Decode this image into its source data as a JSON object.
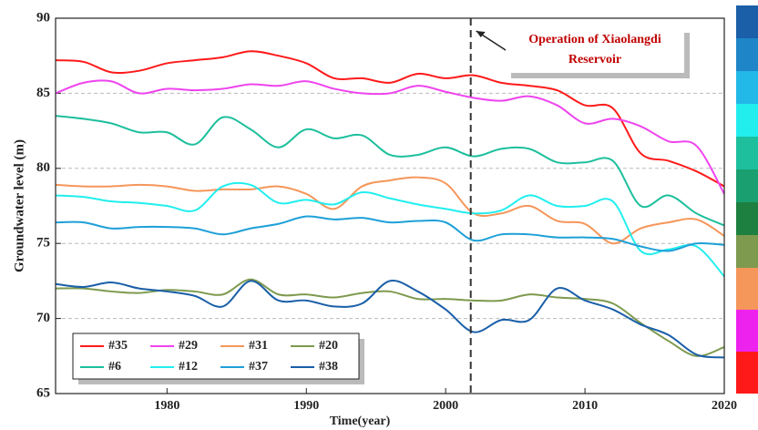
{
  "chart_data": {
    "type": "line",
    "xlabel": "Time(year)",
    "ylabel": "Groundwater level (m)",
    "x": [
      1972,
      1974,
      1976,
      1978,
      1980,
      1982,
      1984,
      1986,
      1988,
      1990,
      1992,
      1994,
      1996,
      1998,
      2000,
      2002,
      2004,
      2006,
      2008,
      2010,
      2012,
      2014,
      2016,
      2018,
      2020
    ],
    "series": [
      {
        "name": "#35",
        "color": "#ff1a1a",
        "values": [
          87.2,
          87.1,
          86.4,
          86.5,
          87.0,
          87.2,
          87.4,
          87.8,
          87.5,
          87.0,
          86.0,
          86.0,
          85.7,
          86.3,
          86.0,
          86.2,
          85.7,
          85.5,
          85.2,
          84.2,
          84.0,
          81.0,
          80.5,
          79.8,
          78.8
        ]
      },
      {
        "name": "#29",
        "color": "#ee44ee",
        "values": [
          85.0,
          85.7,
          85.8,
          85.0,
          85.3,
          85.2,
          85.3,
          85.6,
          85.5,
          85.8,
          85.3,
          85.0,
          85.0,
          85.5,
          85.1,
          84.7,
          84.5,
          84.8,
          84.2,
          83.0,
          83.3,
          82.8,
          81.8,
          81.5,
          78.3
        ]
      },
      {
        "name": "#31",
        "color": "#f5965a",
        "values": [
          78.9,
          78.8,
          78.8,
          78.9,
          78.8,
          78.5,
          78.6,
          78.6,
          78.8,
          78.3,
          77.3,
          78.8,
          79.2,
          79.4,
          79.0,
          77.0,
          77.0,
          77.5,
          76.5,
          76.3,
          75.0,
          76.0,
          76.4,
          76.6,
          75.5
        ]
      },
      {
        "name": "#20",
        "color": "#7d9a4e",
        "values": [
          72.0,
          72.0,
          71.8,
          71.7,
          71.9,
          71.8,
          71.6,
          72.6,
          71.6,
          71.6,
          71.4,
          71.7,
          71.8,
          71.3,
          71.3,
          71.2,
          71.2,
          71.6,
          71.4,
          71.3,
          71.0,
          69.7,
          68.5,
          67.5,
          68.1
        ]
      },
      {
        "name": "#6",
        "color": "#1dbf9c",
        "values": [
          83.5,
          83.3,
          83.0,
          82.4,
          82.4,
          81.6,
          83.4,
          82.6,
          81.4,
          82.6,
          82.0,
          82.2,
          80.9,
          80.9,
          81.4,
          80.8,
          81.3,
          81.3,
          80.4,
          80.4,
          80.5,
          77.5,
          78.2,
          77.0,
          76.2
        ]
      },
      {
        "name": "#12",
        "color": "#22eeee",
        "values": [
          78.2,
          78.1,
          77.8,
          77.7,
          77.5,
          77.2,
          78.8,
          78.9,
          77.7,
          77.9,
          77.6,
          78.4,
          78.0,
          77.6,
          77.3,
          77.0,
          77.2,
          78.2,
          77.5,
          77.5,
          77.8,
          74.5,
          74.6,
          74.8,
          72.8
        ]
      },
      {
        "name": "#37",
        "color": "#1ea0d8",
        "values": [
          76.4,
          76.4,
          76.0,
          76.1,
          76.1,
          76.0,
          75.6,
          76.0,
          76.3,
          76.8,
          76.6,
          76.7,
          76.4,
          76.5,
          76.4,
          75.2,
          75.6,
          75.6,
          75.4,
          75.4,
          75.3,
          74.8,
          74.5,
          75.0,
          74.9
        ]
      },
      {
        "name": "#38",
        "color": "#1a5fa8",
        "values": [
          72.3,
          72.1,
          72.4,
          72.0,
          71.8,
          71.5,
          70.8,
          72.5,
          71.2,
          71.2,
          70.8,
          71.0,
          72.5,
          71.8,
          70.6,
          69.1,
          69.9,
          69.9,
          72.0,
          71.2,
          70.6,
          69.6,
          68.9,
          67.6,
          67.4
        ]
      }
    ],
    "xlim": [
      1972,
      2020
    ],
    "xticks": [
      1980,
      1990,
      2000,
      2010,
      2020
    ],
    "ylim": [
      65,
      90
    ],
    "yticks": [
      65,
      70,
      75,
      80,
      85,
      90
    ],
    "grid": true,
    "legend": "lower left",
    "annotation": {
      "lines": [
        "Operation of Xiaolangdi",
        "Reservoir"
      ],
      "x": 2001.8
    }
  }
}
